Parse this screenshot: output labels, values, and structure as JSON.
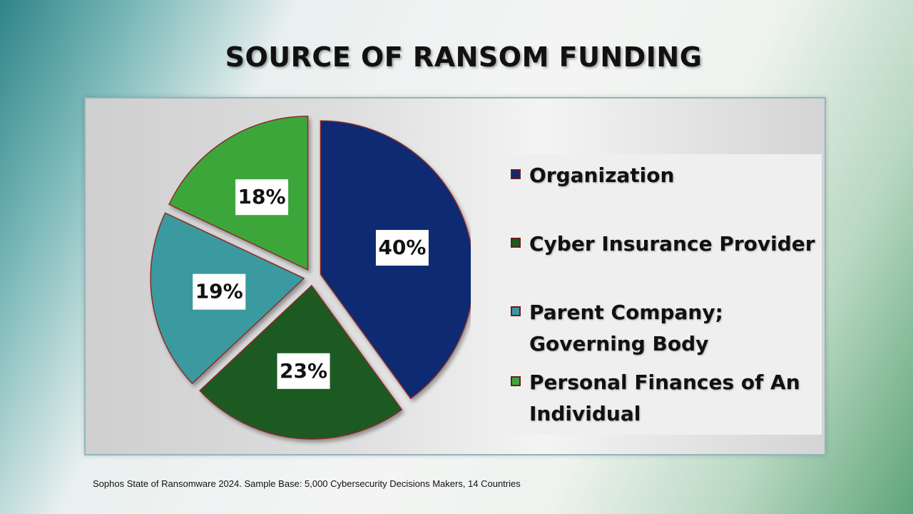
{
  "title": "SOURCE OF RANSOM FUNDING",
  "footnote": "Sophos State of Ransomware 2024.  Sample Base:  5,000 Cybersecurity Decisions Makers, 14 Countries",
  "chart_data": {
    "type": "pie",
    "title": "SOURCE OF RANSOM FUNDING",
    "slices": [
      {
        "name": "Organization",
        "value": 40,
        "label": "40%",
        "color": "#0d2a72"
      },
      {
        "name": "Cyber Insurance Provider",
        "value": 23,
        "label": "23%",
        "color": "#1c5a20"
      },
      {
        "name": "Parent Company; Governing Body",
        "value": 19,
        "label": "19%",
        "color": "#3a9aa0"
      },
      {
        "name": "Personal Finances of An Individual",
        "value": 18,
        "label": "18%",
        "color": "#3ea63a"
      }
    ],
    "legend_placement": "right",
    "exploded": true
  },
  "legend": {
    "items": [
      {
        "label": "Organization",
        "color": "#0d2a72"
      },
      {
        "label": "Cyber Insurance Provider",
        "color": "#1c5a20"
      },
      {
        "label": "Parent Company; Governing Body",
        "color": "#3a9aa0"
      },
      {
        "label": "Personal Finances of An Individual",
        "color": "#3ea63a"
      }
    ]
  }
}
